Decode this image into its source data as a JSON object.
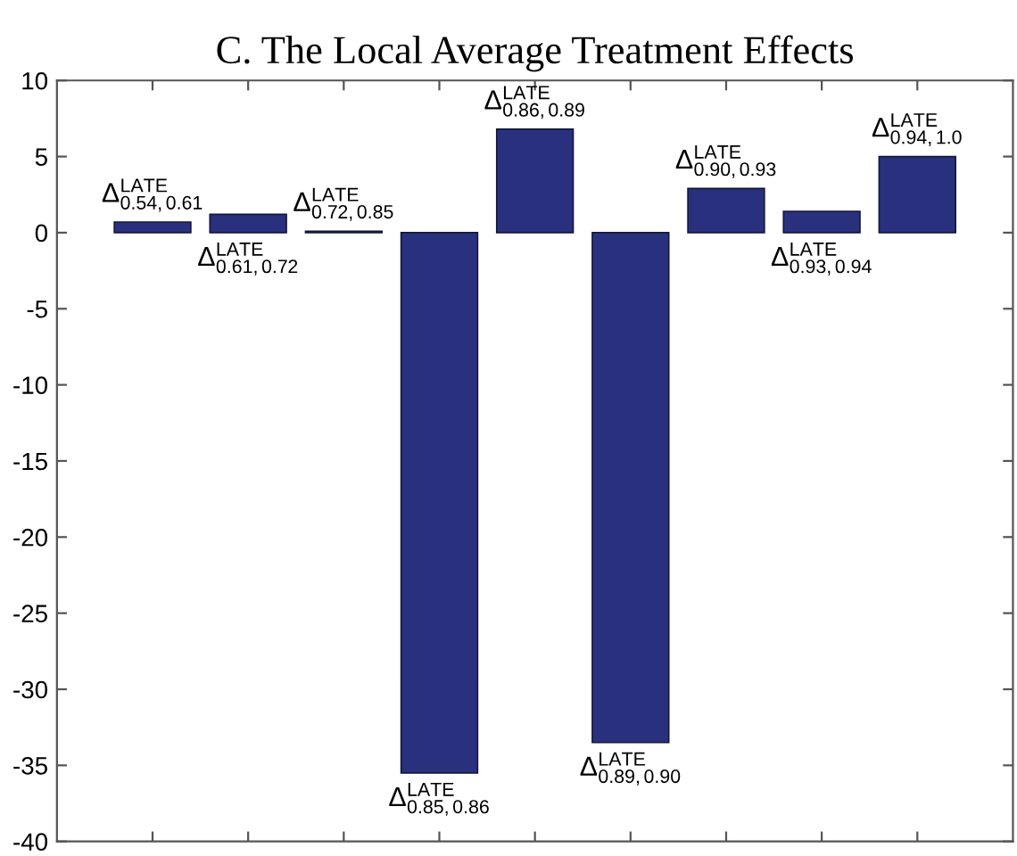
{
  "chart_data": {
    "type": "bar",
    "title": "C. The Local Average Treatment Effects",
    "categories": [
      "Δ$^{LATE}$$_{0.54,0.61}$",
      "Δ$^{LATE}$$_{0.61,0.72}$",
      "Δ$^{LATE}$$_{0.72,0.85}$",
      "Δ$^{LATE}$$_{0.85,0.86}$",
      "Δ$^{LATE}$$_{0.86,0.89}$",
      "Δ$^{LATE}$$_{0.89,0.90}$",
      "Δ$^{LATE}$$_{0.90,0.93}$",
      "Δ$^{LATE}$$_{0.93,0.94}$",
      "Δ$^{LATE}$$_{0.94,1.0}$"
    ],
    "values": [
      0.7,
      1.2,
      0.1,
      -35.5,
      6.8,
      -33.5,
      2.9,
      1.4,
      5.0
    ],
    "color": "#29317f",
    "ylim": [
      -40,
      10
    ],
    "yticks": [
      -40,
      -35,
      -30,
      -25,
      -20,
      -15,
      -10,
      -5,
      0,
      5,
      10
    ]
  }
}
